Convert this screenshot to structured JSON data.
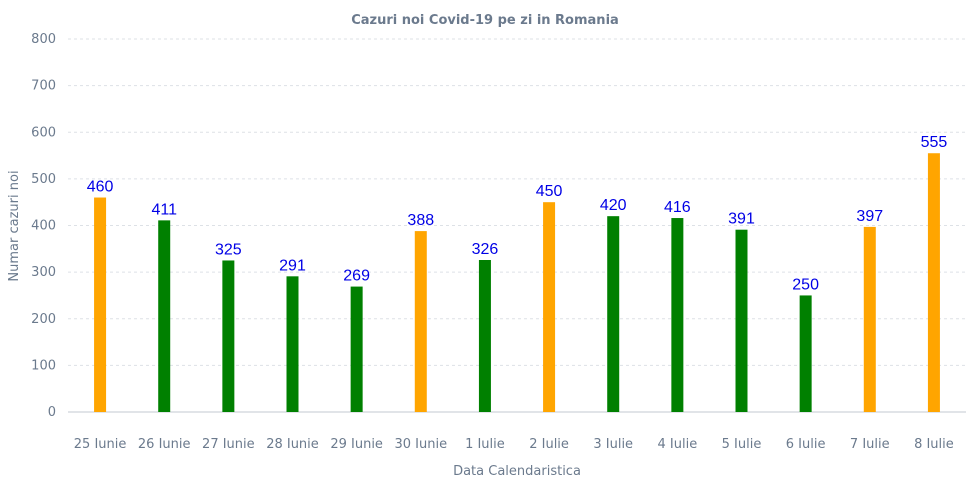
{
  "chart_data": {
    "type": "bar",
    "title": "Cazuri noi Covid-19 pe zi in Romania",
    "xlabel": "Data Calendaristica",
    "ylabel": "Numar cazuri noi",
    "ylim": [
      0,
      800
    ],
    "yticks": [
      "0",
      "100",
      "200",
      "300",
      "400",
      "500",
      "600",
      "700",
      "800"
    ],
    "grid": true,
    "categories": [
      "25 Iunie",
      "26 Iunie",
      "27 Iunie",
      "28 Iunie",
      "29 Iunie",
      "30 Iunie",
      "1 Iulie",
      "2 Iulie",
      "3 Iulie",
      "4 Iulie",
      "5 Iulie",
      "6 Iulie",
      "7 Iulie",
      "8 Iulie"
    ],
    "values": [
      460,
      411,
      325,
      291,
      269,
      388,
      326,
      450,
      420,
      416,
      391,
      250,
      397,
      555
    ],
    "bar_colors": [
      "#ffa500",
      "#008000",
      "#008000",
      "#008000",
      "#008000",
      "#ffa500",
      "#008000",
      "#ffa500",
      "#008000",
      "#008000",
      "#008000",
      "#008000",
      "#ffa500",
      "#ffa500"
    ],
    "data_label_color": "#0000e6"
  }
}
